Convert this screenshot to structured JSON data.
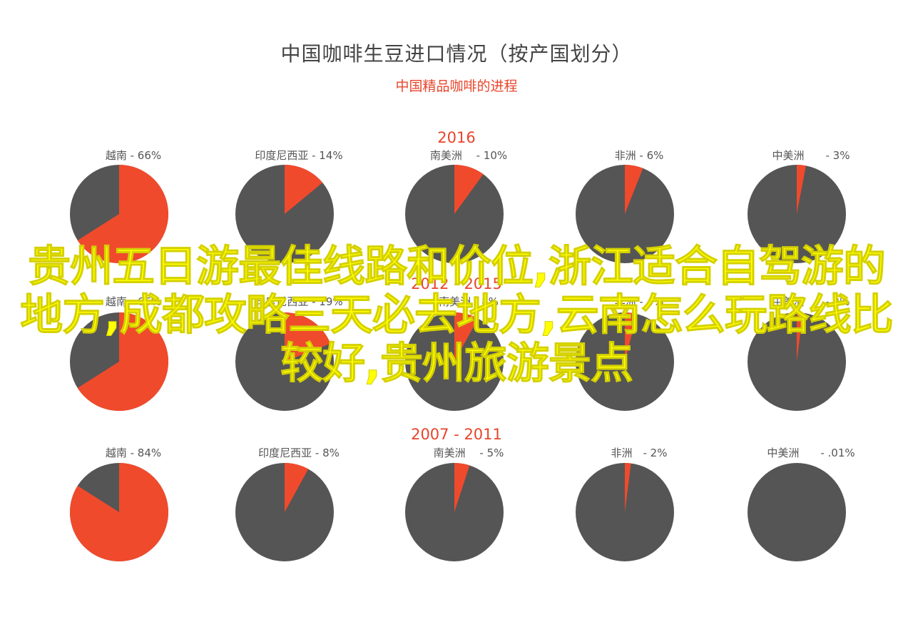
{
  "title": "中国咖啡生豆进口情况（按产国划分）",
  "subtitle": "中国精品咖啡的进程",
  "colors": {
    "slice": "#f04a2c",
    "rest": "#555555",
    "accent": "#e8452c"
  },
  "overlay_text": "贵州五日游最佳线路和价位,浙江适合自驾游的地方,成都攻略三天必去地方,云南怎么玩路线比较好,贵州旅游景点",
  "chart_data": [
    {
      "type": "pie",
      "group": "2016",
      "pies": [
        {
          "country": "越南",
          "label": "越南 - 66%",
          "percent": 66
        },
        {
          "country": "印度尼西亚",
          "label": "印度尼西亚 - 14%",
          "percent": 14
        },
        {
          "country": "南美洲",
          "label": "南美洲　 - 10%",
          "percent": 10
        },
        {
          "country": "非洲",
          "label": "非洲 - 6%",
          "percent": 6
        },
        {
          "country": "中美洲",
          "label": "中美洲　　- 3%",
          "percent": 3
        }
      ]
    },
    {
      "type": "pie",
      "group": "2012 - 2015",
      "pies": [
        {
          "country": "越南",
          "label": "越南 - 66%",
          "percent": 66
        },
        {
          "country": "印度尼西亚",
          "label": "印度尼西亚 - 19%",
          "percent": 19
        },
        {
          "country": "南美洲",
          "label": "南美洲 - 8%",
          "percent": 8
        },
        {
          "country": "非洲",
          "label": "非洲 - 4%",
          "percent": 4
        },
        {
          "country": "中美洲",
          "label": "中美洲　　- 2%",
          "percent": 2
        }
      ]
    },
    {
      "type": "pie",
      "group": "2007 - 2011",
      "pies": [
        {
          "country": "越南",
          "label": "越南 - 84%",
          "percent": 84
        },
        {
          "country": "印度尼西亚",
          "label": "印度尼西亚 - 8%",
          "percent": 8
        },
        {
          "country": "南美洲",
          "label": "南美洲　 - 5%",
          "percent": 5
        },
        {
          "country": "非洲",
          "label": "非洲　- 2%",
          "percent": 2
        },
        {
          "country": "中美洲",
          "label": "中美洲　　- .01%",
          "percent": 0.01
        }
      ]
    }
  ]
}
